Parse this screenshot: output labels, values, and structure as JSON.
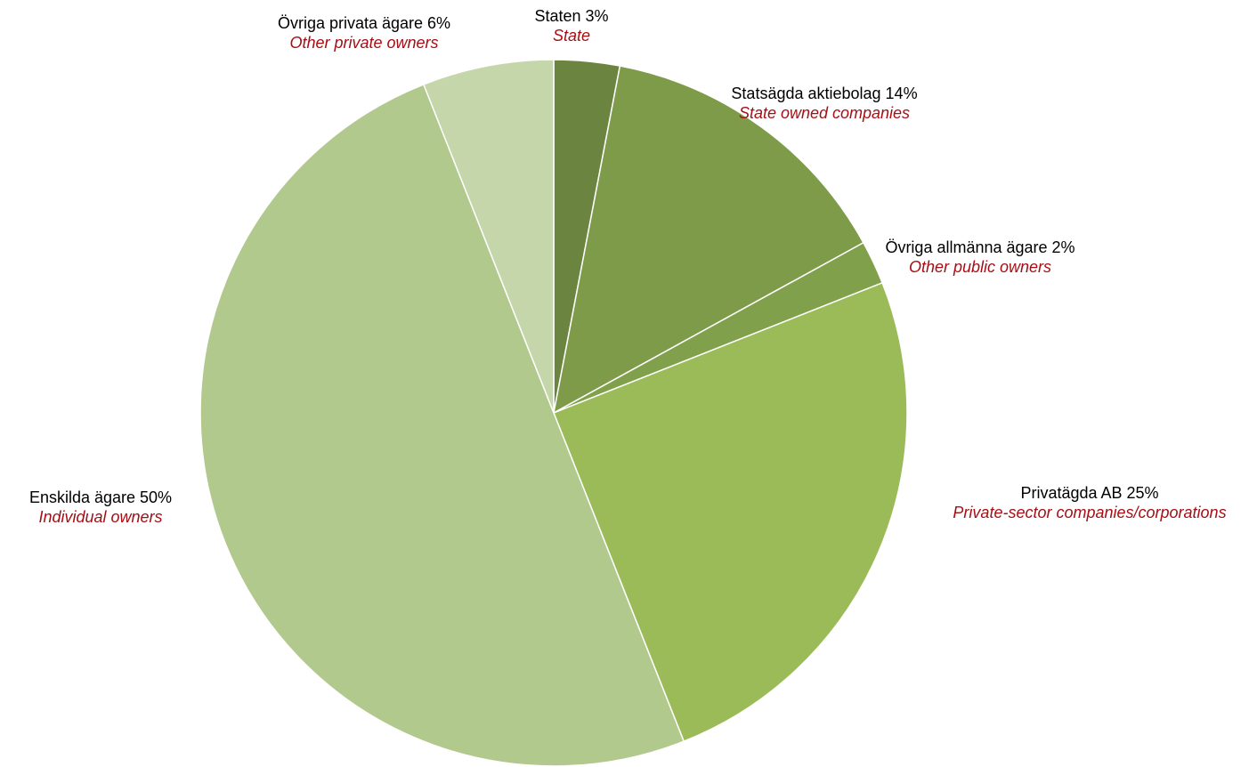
{
  "chart_data": {
    "type": "pie",
    "start": "top",
    "direction": "clockwise",
    "slices": [
      {
        "label": "Staten 3%",
        "label_en": "State",
        "value": 3,
        "color": "#6b8540"
      },
      {
        "label": "Statsägda aktiebolag  14%",
        "label_en": "State owned companies",
        "value": 14,
        "color": "#7e9b4a"
      },
      {
        "label": "Övriga allmänna ägare 2%",
        "label_en": "Other public owners",
        "value": 2,
        "color": "#81a04b"
      },
      {
        "label": "Privatägda AB 25%",
        "label_en": "Private-sector companies/corporations",
        "value": 25,
        "color": "#9bbb59"
      },
      {
        "label": "Enskilda ägare 50%",
        "label_en": "Individual owners",
        "value": 50,
        "color": "#b1c98d"
      },
      {
        "label": "Övriga privata ägare 6%",
        "label_en": "Other private owners",
        "value": 6,
        "color": "#c5d6aa"
      }
    ]
  }
}
